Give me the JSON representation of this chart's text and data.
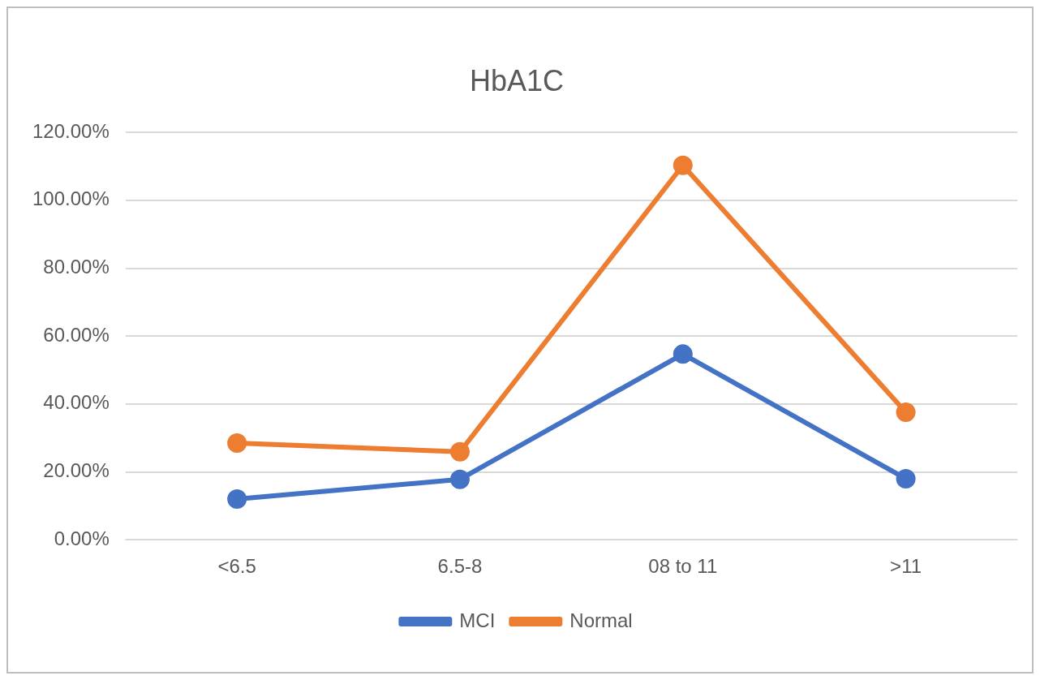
{
  "chart_data": {
    "type": "line",
    "title": "HbA1C",
    "categories": [
      "<6.5",
      "6.5-8",
      "08 to 11",
      ">11"
    ],
    "series": [
      {
        "name": "MCI",
        "color": "#4472c4",
        "values": [
          12,
          17.8,
          54.7,
          18
        ]
      },
      {
        "name": "Normal",
        "color": "#ed7d31",
        "values": [
          28.5,
          25.9,
          110.3,
          37.6
        ]
      }
    ],
    "ylim": [
      0,
      120
    ],
    "yticks": [
      {
        "value": 0,
        "label": "0.00%"
      },
      {
        "value": 20,
        "label": "20.00%"
      },
      {
        "value": 40,
        "label": "40.00%"
      },
      {
        "value": 60,
        "label": "60.00%"
      },
      {
        "value": 80,
        "label": "80.00%"
      },
      {
        "value": 100,
        "label": "100.00%"
      },
      {
        "value": 120,
        "label": "120.00%"
      }
    ],
    "grid": "y",
    "legend": "bottom",
    "marker": "circle"
  }
}
